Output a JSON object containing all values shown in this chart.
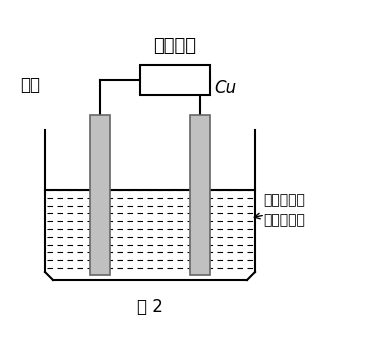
{
  "title_text": "直流电源",
  "label_left": "石墨",
  "label_right": "Cu",
  "label_solution_line1": "浓的强碱性",
  "label_solution_line2": "电解质溶液",
  "caption": "图 2",
  "bg_color": "#ffffff",
  "line_color": "#000000",
  "electrode_color": "#c0c0c0",
  "electrode_border": "#666666",
  "cjk_font": "Noto Sans CJK SC",
  "fallback_fonts": [
    "SimHei",
    "Microsoft YaHei",
    "WenQuanYi Zen Hei",
    "Arial Unicode MS"
  ]
}
